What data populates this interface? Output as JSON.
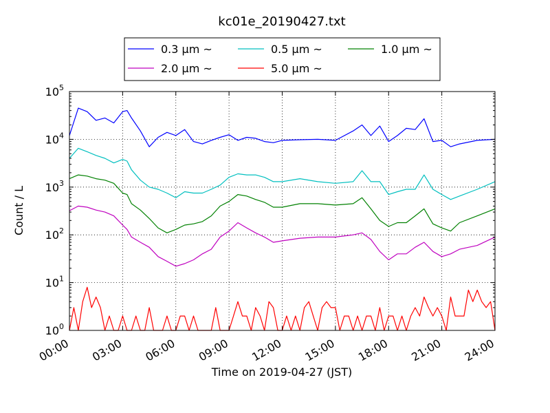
{
  "chart_data": {
    "type": "line",
    "title": "kc01e_20190427.txt",
    "xlabel": "Time on 2019-04-27 (JST)",
    "ylabel": "Count / L",
    "yscale": "log",
    "ylim": [
      1,
      100000
    ],
    "xlim": [
      0,
      24
    ],
    "grid": true,
    "legend_position": "top-center",
    "x_tick_labels": [
      "00:00",
      "03:00",
      "06:00",
      "09:00",
      "12:00",
      "15:00",
      "18:00",
      "21:00",
      "24:00"
    ],
    "y_ticks": [
      {
        "base": "10",
        "exp": "0"
      },
      {
        "base": "10",
        "exp": "1"
      },
      {
        "base": "10",
        "exp": "2"
      },
      {
        "base": "10",
        "exp": "3"
      },
      {
        "base": "10",
        "exp": "4"
      },
      {
        "base": "10",
        "exp": "5"
      }
    ],
    "series": [
      {
        "name": "0.3 μm ~",
        "color": "#0000ff",
        "x": [
          0,
          0.5,
          1,
          1.5,
          2,
          2.5,
          3,
          3.25,
          3.5,
          4,
          4.5,
          5,
          5.5,
          6,
          6.5,
          7,
          7.5,
          8,
          8.5,
          9,
          9.5,
          10,
          10.5,
          11,
          11.5,
          12,
          13,
          14,
          15,
          16,
          16.5,
          17,
          17.5,
          18,
          18.5,
          19,
          19.5,
          20,
          20.5,
          21,
          21.5,
          22,
          23,
          24
        ],
        "values": [
          12000,
          45000,
          38000,
          25000,
          28000,
          22000,
          38000,
          40000,
          28000,
          15000,
          7000,
          11000,
          14000,
          12000,
          16000,
          9000,
          8000,
          9500,
          11000,
          12500,
          9500,
          11000,
          10500,
          9000,
          8500,
          9500,
          9800,
          10000,
          9500,
          15000,
          20000,
          12000,
          19000,
          9000,
          12000,
          17000,
          16000,
          27000,
          9000,
          9500,
          7000,
          8000,
          9500,
          10000
        ]
      },
      {
        "name": "0.5 μm ~",
        "color": "#00bfbf",
        "x": [
          0,
          0.5,
          1,
          1.5,
          2,
          2.5,
          3,
          3.25,
          3.5,
          4,
          4.5,
          5,
          5.5,
          6,
          6.5,
          7,
          7.5,
          8,
          8.5,
          9,
          9.5,
          10,
          10.5,
          11,
          11.5,
          12,
          13,
          14,
          15,
          16,
          16.5,
          17,
          17.5,
          18,
          18.5,
          19,
          19.5,
          20,
          20.5,
          21,
          21.5,
          22,
          23,
          24
        ],
        "values": [
          4000,
          6500,
          5500,
          4600,
          4000,
          3200,
          3800,
          3500,
          2300,
          1400,
          1000,
          900,
          750,
          600,
          800,
          750,
          750,
          900,
          1100,
          1600,
          1900,
          1800,
          1800,
          1600,
          1300,
          1300,
          1500,
          1300,
          1200,
          1300,
          2200,
          1300,
          1300,
          700,
          800,
          900,
          900,
          1800,
          900,
          700,
          550,
          650,
          900,
          1300
        ]
      },
      {
        "name": "1.0 μm ~",
        "color": "#008000",
        "x": [
          0,
          0.5,
          1,
          1.5,
          2,
          2.5,
          3,
          3.25,
          3.5,
          4,
          4.5,
          5,
          5.5,
          6,
          6.5,
          7,
          7.5,
          8,
          8.5,
          9,
          9.5,
          10,
          10.5,
          11,
          11.5,
          12,
          13,
          14,
          15,
          16,
          16.5,
          17,
          17.5,
          18,
          18.5,
          19,
          19.5,
          20,
          20.5,
          21,
          21.5,
          22,
          23,
          24
        ],
        "values": [
          1500,
          1800,
          1700,
          1500,
          1400,
          1200,
          750,
          700,
          450,
          330,
          220,
          140,
          110,
          130,
          160,
          170,
          190,
          250,
          400,
          500,
          700,
          650,
          550,
          480,
          380,
          380,
          450,
          450,
          420,
          450,
          600,
          350,
          200,
          150,
          180,
          180,
          250,
          350,
          170,
          140,
          120,
          180,
          250,
          350
        ]
      },
      {
        "name": "2.0 μm ~",
        "color": "#bf00bf",
        "x": [
          0,
          0.5,
          1,
          1.5,
          2,
          2.5,
          3,
          3.25,
          3.5,
          4,
          4.5,
          5,
          5.5,
          6,
          6.5,
          7,
          7.5,
          8,
          8.5,
          9,
          9.5,
          10,
          10.5,
          11,
          11.5,
          12,
          13,
          14,
          15,
          16,
          16.5,
          17,
          17.5,
          18,
          18.5,
          19,
          19.5,
          20,
          20.5,
          21,
          21.5,
          22,
          23,
          24
        ],
        "values": [
          320,
          400,
          380,
          330,
          300,
          250,
          160,
          130,
          90,
          70,
          55,
          35,
          28,
          22,
          25,
          30,
          40,
          50,
          90,
          120,
          180,
          140,
          110,
          90,
          70,
          75,
          85,
          90,
          90,
          100,
          110,
          80,
          45,
          30,
          40,
          40,
          55,
          70,
          45,
          35,
          40,
          50,
          60,
          90
        ]
      },
      {
        "name": "5.0 μm ~",
        "color": "#ff0000",
        "x": [
          0,
          0.25,
          0.5,
          0.75,
          1,
          1.25,
          1.5,
          1.75,
          2,
          2.25,
          2.5,
          2.75,
          3,
          3.25,
          3.5,
          3.75,
          4,
          4.25,
          4.5,
          4.75,
          5,
          5.25,
          5.5,
          5.75,
          6,
          6.25,
          6.5,
          6.75,
          7,
          7.25,
          7.5,
          7.75,
          8,
          8.25,
          8.5,
          8.75,
          9,
          9.25,
          9.5,
          9.75,
          10,
          10.25,
          10.5,
          10.75,
          11,
          11.25,
          11.5,
          11.75,
          12,
          12.25,
          12.5,
          12.75,
          13,
          13.25,
          13.5,
          13.75,
          14,
          14.25,
          14.5,
          14.75,
          15,
          15.25,
          15.5,
          15.75,
          16,
          16.25,
          16.5,
          16.75,
          17,
          17.25,
          17.5,
          17.75,
          18,
          18.25,
          18.5,
          18.75,
          19,
          19.25,
          19.5,
          19.75,
          20,
          20.25,
          20.5,
          20.75,
          21,
          21.25,
          21.5,
          21.75,
          22,
          22.25,
          22.5,
          22.75,
          23,
          23.25,
          23.5,
          23.75,
          24
        ],
        "values": [
          1,
          3,
          1,
          4,
          8,
          3,
          5,
          3,
          1,
          2,
          1,
          1,
          2,
          1,
          1,
          2,
          1,
          1,
          3,
          1,
          1,
          1,
          2,
          1,
          1,
          2,
          2,
          1,
          2,
          1,
          1,
          1,
          1,
          3,
          1,
          1,
          1,
          2,
          4,
          2,
          2,
          1,
          3,
          2,
          1,
          4,
          3,
          1,
          1,
          2,
          1,
          2,
          1,
          3,
          4,
          2,
          1,
          3,
          4,
          3,
          3,
          1,
          2,
          2,
          1,
          2,
          1,
          2,
          2,
          1,
          3,
          1,
          2,
          2,
          1,
          2,
          1,
          2,
          3,
          2,
          5,
          3,
          2,
          3,
          2,
          1,
          5,
          2,
          2,
          2,
          7,
          4,
          7,
          4,
          3,
          4,
          1
        ]
      }
    ]
  }
}
